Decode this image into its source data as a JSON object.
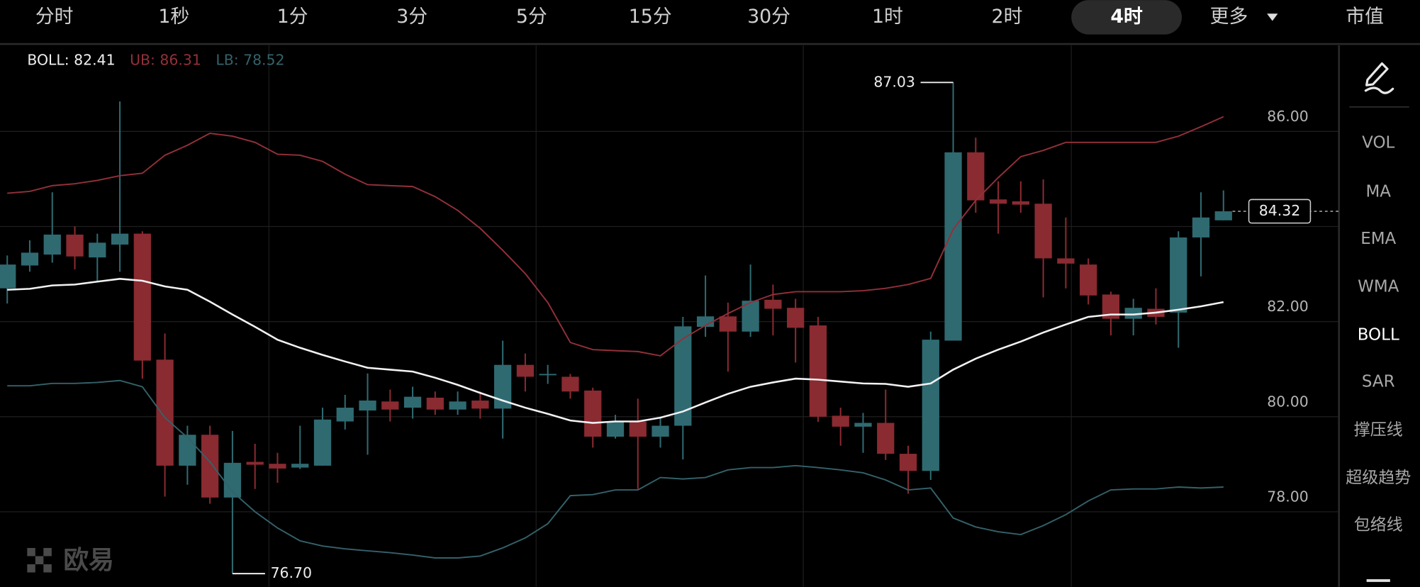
{
  "ui": {
    "tabs": [
      {
        "label": "分时"
      },
      {
        "label": "1秒"
      },
      {
        "label": "1分"
      },
      {
        "label": "3分"
      },
      {
        "label": "5分"
      },
      {
        "label": "15分"
      },
      {
        "label": "30分"
      },
      {
        "label": "1时"
      },
      {
        "label": "2时"
      },
      {
        "label": "4时",
        "active": true
      },
      {
        "label": "更多"
      },
      {
        "label": "市值"
      }
    ],
    "indicators": [
      {
        "label": "VOL"
      },
      {
        "label": "MA"
      },
      {
        "label": "EMA"
      },
      {
        "label": "WMA"
      },
      {
        "label": "BOLL",
        "active": true
      },
      {
        "label": "SAR"
      },
      {
        "label": "撑压线"
      },
      {
        "label": "超级趋势"
      },
      {
        "label": "包络线"
      }
    ],
    "watermark": "欧易"
  },
  "chart_data": {
    "type": "candlestick",
    "up_color": "#2f6a71",
    "down_color": "#8a2a31",
    "ylim": [
      76.42,
      87.81
    ],
    "yticks": [
      {
        "value": 86,
        "label": "86.00"
      },
      {
        "value": 82,
        "label": "82.00"
      },
      {
        "value": 80,
        "label": "80.00"
      },
      {
        "value": 78,
        "label": "78.00"
      }
    ],
    "gridlines": [
      78,
      80,
      82,
      84,
      86
    ],
    "high_label": "87.03",
    "low_label": "76.70",
    "open": [
      82.7,
      83.18,
      83.41,
      83.83,
      83.35,
      83.62,
      83.85,
      81.2,
      78.97,
      79.62,
      78.3,
      79.05,
      79.01,
      78.93,
      78.97,
      79.9,
      80.13,
      80.32,
      80.19,
      80.4,
      80.15,
      80.34,
      80.17,
      81.09,
      80.88,
      80.84,
      80.55,
      79.58,
      79.9,
      79.58,
      79.81,
      81.89,
      82.11,
      81.79,
      82.46,
      82.29,
      81.92,
      80.02,
      79.79,
      79.87,
      79.22,
      78.86,
      81.6,
      85.56,
      84.57,
      84.53,
      84.48,
      83.33,
      83.2,
      82.57,
      82.06,
      82.27,
      82.19,
      83.77,
      84.13
    ],
    "high": [
      83.39,
      83.71,
      84.72,
      84.0,
      83.85,
      86.63,
      83.9,
      81.75,
      79.81,
      79.81,
      79.7,
      79.43,
      79.24,
      79.81,
      80.19,
      80.46,
      80.91,
      80.57,
      80.63,
      80.53,
      80.53,
      80.53,
      81.6,
      81.33,
      81.09,
      80.9,
      80.61,
      80.04,
      80.38,
      80.0,
      82.1,
      82.97,
      82.4,
      83.2,
      82.78,
      82.48,
      82.1,
      80.19,
      80.08,
      80.57,
      79.39,
      81.79,
      87.03,
      85.87,
      84.95,
      84.95,
      84.99,
      84.19,
      83.33,
      82.63,
      82.48,
      82.7,
      83.9,
      84.72,
      84.76
    ],
    "low": [
      82.38,
      83.05,
      83.24,
      83.1,
      82.86,
      83.05,
      80.8,
      78.32,
      78.57,
      78.17,
      76.7,
      78.48,
      78.61,
      78.9,
      78.97,
      79.73,
      79.2,
      79.9,
      79.96,
      80.04,
      80.04,
      79.96,
      79.54,
      80.53,
      80.69,
      80.38,
      79.35,
      79.54,
      78.48,
      79.35,
      79.1,
      81.68,
      80.95,
      81.68,
      81.71,
      81.14,
      79.89,
      79.39,
      79.24,
      79.09,
      78.38,
      78.67,
      81.6,
      84.29,
      83.85,
      84.29,
      82.51,
      82.7,
      82.36,
      81.71,
      81.71,
      81.94,
      81.45,
      82.95,
      84.13
    ],
    "close": [
      83.2,
      83.45,
      83.83,
      83.37,
      83.66,
      83.85,
      81.18,
      78.97,
      79.62,
      78.3,
      79.03,
      78.99,
      78.91,
      79.01,
      79.94,
      80.19,
      80.34,
      80.15,
      80.42,
      80.15,
      80.32,
      80.17,
      81.09,
      80.84,
      80.9,
      80.53,
      79.58,
      79.9,
      79.58,
      79.81,
      81.9,
      82.11,
      81.79,
      82.44,
      82.27,
      81.87,
      80.0,
      79.79,
      79.87,
      79.22,
      78.86,
      81.62,
      85.56,
      84.55,
      84.48,
      84.46,
      83.33,
      83.22,
      82.55,
      82.06,
      82.29,
      82.1,
      83.77,
      84.19,
      84.32
    ],
    "series": [
      {
        "legend": "BOLL: 82.41",
        "color": "#f2f2f2",
        "values": [
          82.67,
          82.69,
          82.76,
          82.78,
          82.84,
          82.9,
          82.86,
          82.74,
          82.67,
          82.42,
          82.15,
          81.89,
          81.62,
          81.45,
          81.3,
          81.16,
          81.03,
          80.99,
          80.95,
          80.82,
          80.67,
          80.5,
          80.34,
          80.19,
          80.06,
          79.92,
          79.87,
          79.9,
          79.9,
          79.98,
          80.11,
          80.3,
          80.48,
          80.63,
          80.72,
          80.8,
          80.78,
          80.74,
          80.7,
          80.69,
          80.63,
          80.7,
          80.99,
          81.22,
          81.41,
          81.58,
          81.77,
          81.94,
          82.1,
          82.15,
          82.15,
          82.19,
          82.25,
          82.32,
          82.41
        ]
      },
      {
        "legend": "UB: 86.31",
        "color": "#93303a",
        "values": [
          84.7,
          84.74,
          84.86,
          84.9,
          84.97,
          85.07,
          85.12,
          85.5,
          85.71,
          85.96,
          85.9,
          85.77,
          85.52,
          85.5,
          85.37,
          85.1,
          84.88,
          84.86,
          84.84,
          84.63,
          84.34,
          83.96,
          83.5,
          83.01,
          82.4,
          81.56,
          81.41,
          81.39,
          81.37,
          81.28,
          81.64,
          81.92,
          82.17,
          82.4,
          82.57,
          82.63,
          82.63,
          82.63,
          82.65,
          82.7,
          82.78,
          82.91,
          83.94,
          84.55,
          85.03,
          85.47,
          85.6,
          85.77,
          85.77,
          85.77,
          85.77,
          85.77,
          85.9,
          86.1,
          86.31
        ]
      },
      {
        "legend": "LB: 78.52",
        "color": "#34626a",
        "values": [
          80.65,
          80.65,
          80.7,
          80.7,
          80.72,
          80.76,
          80.63,
          79.98,
          79.56,
          79.05,
          78.42,
          78.0,
          77.66,
          77.39,
          77.28,
          77.22,
          77.18,
          77.14,
          77.09,
          77.03,
          77.03,
          77.07,
          77.24,
          77.45,
          77.75,
          78.34,
          78.36,
          78.46,
          78.46,
          78.72,
          78.69,
          78.72,
          78.88,
          78.93,
          78.93,
          78.97,
          78.93,
          78.88,
          78.82,
          78.67,
          78.46,
          78.5,
          77.87,
          77.68,
          77.58,
          77.52,
          77.71,
          77.94,
          78.23,
          78.46,
          78.48,
          78.48,
          78.52,
          78.5,
          78.52
        ]
      }
    ]
  }
}
